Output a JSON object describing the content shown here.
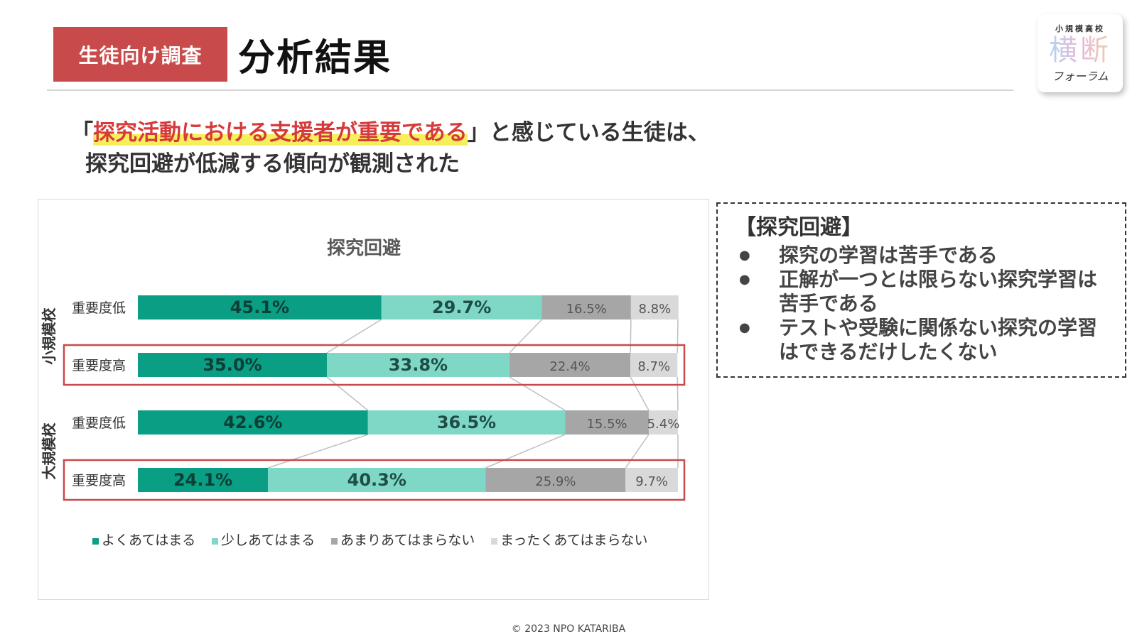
{
  "header": {
    "tag": "生徒向け調査",
    "title": "分析結果"
  },
  "logo": {
    "top": "小規模高校",
    "main": "横断",
    "sub": "フォーラム"
  },
  "headline": {
    "open_quote": "「",
    "highlight": "探究活動における支援者が重要である",
    "rest1": "」と感じている生徒は、",
    "line2": "探究回避が低減する傾向が観測された"
  },
  "note": {
    "heading": "【探究回避】",
    "items": [
      "探究の学習は苦手である",
      "正解が一つとは限らない探究学習は苦手である",
      "テストや受験に関係ない探究の学習はできるだけしたくない"
    ]
  },
  "footer": {
    "copyright": "© 2023 NPO KATARIBA"
  },
  "colors": {
    "accent_red": "#c94a4a",
    "highlight_red": "#d63a3a",
    "marker_yellow": "#f6ef5b",
    "series": [
      "#0a9e84",
      "#7fd8c5",
      "#a6a6a6",
      "#d9d9d9"
    ]
  },
  "chart_data": {
    "type": "bar",
    "orientation": "horizontal",
    "stacked": "100%",
    "title": "探究回避",
    "groups": [
      {
        "name": "小規模校",
        "rows": [
          0,
          1
        ]
      },
      {
        "name": "大規模校",
        "rows": [
          2,
          3
        ]
      }
    ],
    "categories": [
      "重要度低",
      "重要度高",
      "重要度低",
      "重要度高"
    ],
    "series": [
      {
        "name": "よくあてはまる",
        "values": [
          45.1,
          35.0,
          42.6,
          24.1
        ]
      },
      {
        "name": "少しあてはまる",
        "values": [
          29.7,
          33.8,
          36.5,
          40.3
        ]
      },
      {
        "name": "あまりあてはまらない",
        "values": [
          16.5,
          22.4,
          15.5,
          25.9
        ]
      },
      {
        "name": "まったくあてはまらない",
        "values": [
          8.8,
          8.7,
          5.4,
          9.7
        ]
      }
    ],
    "value_suffix": "%",
    "highlighted_rows": [
      1,
      3
    ],
    "series_lines": true,
    "legend_position": "bottom"
  }
}
